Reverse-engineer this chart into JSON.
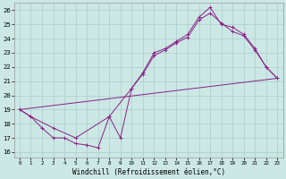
{
  "xlabel": "Windchill (Refroidissement éolien,°C)",
  "background_color": "#cce8e4",
  "grid_color": "#aacccc",
  "line_color": "#882288",
  "xlim": [
    -0.5,
    23.5
  ],
  "ylim": [
    15.6,
    26.5
  ],
  "xticks": [
    0,
    1,
    2,
    3,
    4,
    5,
    6,
    7,
    8,
    9,
    10,
    11,
    12,
    13,
    14,
    15,
    16,
    17,
    18,
    19,
    20,
    21,
    22,
    23
  ],
  "yticks": [
    16,
    17,
    18,
    19,
    20,
    21,
    22,
    23,
    24,
    25,
    26
  ],
  "series": [
    {
      "x": [
        0,
        1,
        2,
        3,
        4,
        5,
        6,
        7,
        8,
        9,
        10,
        11,
        12,
        13,
        14,
        15,
        16,
        17,
        18,
        19,
        20,
        21,
        22,
        23
      ],
      "y": [
        19.0,
        18.5,
        17.7,
        17.0,
        17.0,
        16.6,
        16.5,
        16.3,
        18.5,
        17.0,
        20.5,
        21.6,
        23.0,
        23.3,
        23.8,
        24.3,
        25.5,
        26.2,
        25.0,
        24.8,
        24.3,
        23.3,
        22.0,
        21.2
      ],
      "marker": true
    },
    {
      "x": [
        0,
        1,
        3,
        5,
        8,
        10,
        11,
        12,
        13,
        14,
        15,
        16,
        17,
        18,
        19,
        20,
        21,
        22,
        23
      ],
      "y": [
        19.0,
        18.5,
        17.7,
        17.0,
        18.5,
        20.5,
        21.5,
        22.8,
        23.2,
        23.7,
        24.1,
        25.3,
        25.8,
        25.1,
        24.5,
        24.2,
        23.2,
        22.0,
        21.2
      ],
      "marker": true
    },
    {
      "x": [
        0,
        23
      ],
      "y": [
        19.0,
        21.2
      ],
      "marker": false
    }
  ]
}
